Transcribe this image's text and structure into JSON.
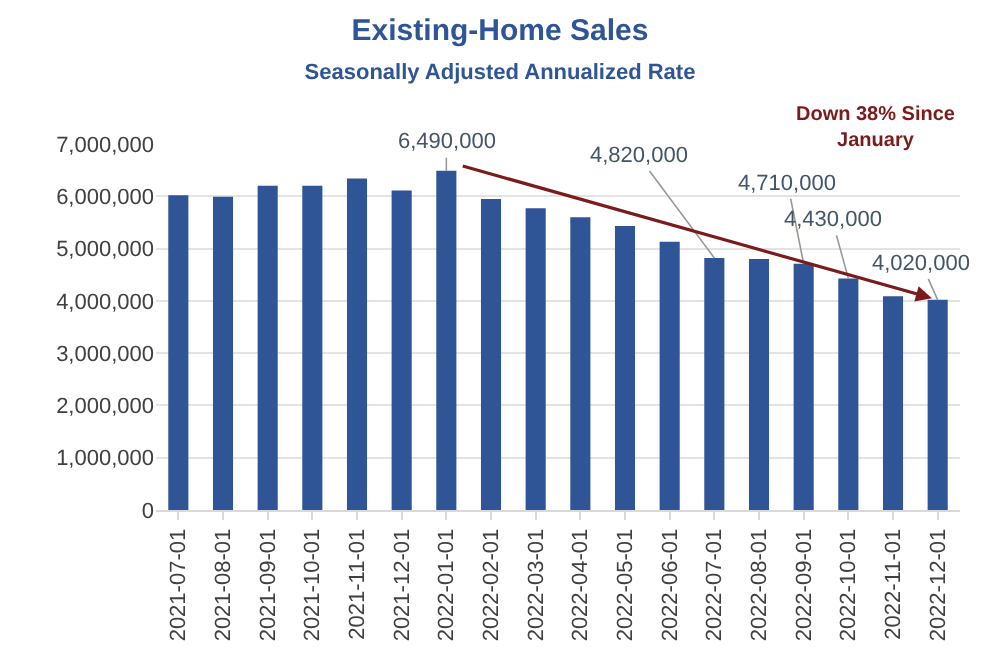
{
  "chart_data": {
    "type": "bar",
    "title": "Existing-Home Sales",
    "subtitle": "Seasonally Adjusted Annualized Rate",
    "categories": [
      "2021-07-01",
      "2021-08-01",
      "2021-09-01",
      "2021-10-01",
      "2021-11-01",
      "2021-12-01",
      "2022-01-01",
      "2022-02-01",
      "2022-03-01",
      "2022-04-01",
      "2022-05-01",
      "2022-06-01",
      "2022-07-01",
      "2022-08-01",
      "2022-09-01",
      "2022-10-01",
      "2022-11-01",
      "2022-12-01"
    ],
    "values": [
      6020000,
      5990000,
      6200000,
      6200000,
      6340000,
      6110000,
      6490000,
      5950000,
      5770000,
      5600000,
      5430000,
      5130000,
      4820000,
      4800000,
      4710000,
      4430000,
      4090000,
      4020000
    ],
    "value_labels": [
      null,
      null,
      null,
      null,
      null,
      null,
      "6,490,000",
      null,
      null,
      null,
      null,
      null,
      "4,820,000",
      null,
      "4,710,000",
      "4,430,000",
      null,
      "4,020,000"
    ],
    "color": "#2f5597",
    "ylim": [
      0,
      7000000
    ],
    "yticks": [
      {
        "value": 0,
        "label": "0"
      },
      {
        "value": 1000000,
        "label": "1,000,000"
      },
      {
        "value": 2000000,
        "label": "2,000,000"
      },
      {
        "value": 3000000,
        "label": "3,000,000"
      },
      {
        "value": 4000000,
        "label": "4,000,000"
      },
      {
        "value": 5000000,
        "label": "5,000,000"
      },
      {
        "value": 6000000,
        "label": "6,000,000"
      },
      {
        "value": 7000000,
        "label": "7,000,000"
      }
    ],
    "grid": "y",
    "annotations": [
      "Down 38% Since January"
    ]
  }
}
